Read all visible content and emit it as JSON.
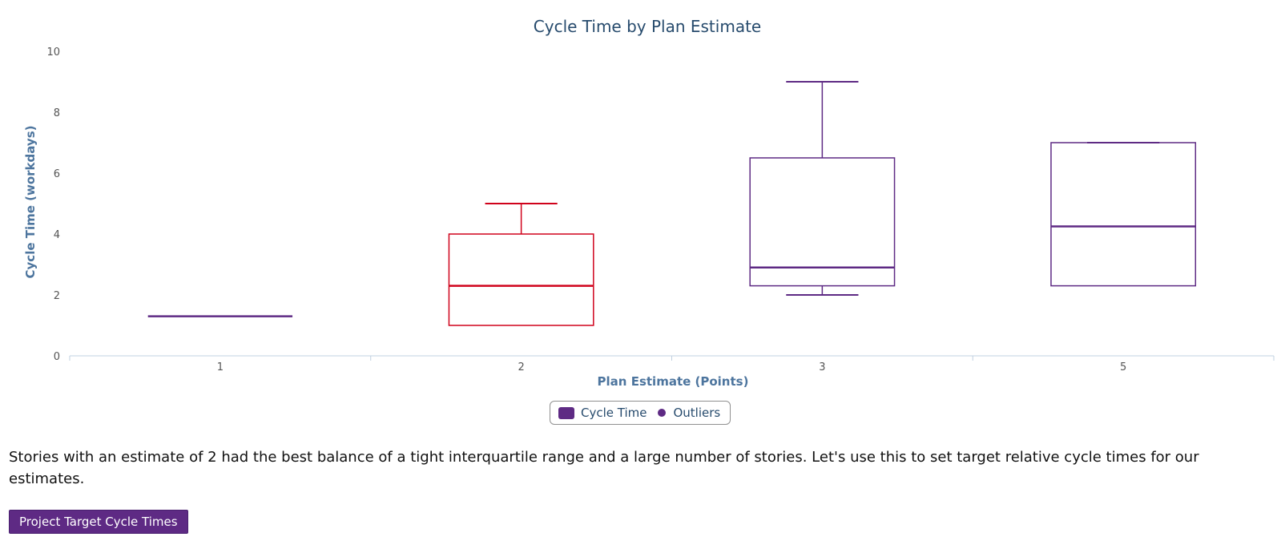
{
  "colors": {
    "primary": "#5e2a84",
    "highlight": "#d0021b",
    "axis_line": "#c0d0e0"
  },
  "chart_data": {
    "type": "boxplot",
    "title": "Cycle Time by Plan Estimate",
    "xlabel": "Plan Estimate (Points)",
    "ylabel": "Cycle Time (workdays)",
    "categories": [
      "1",
      "2",
      "3",
      "5"
    ],
    "ylim": [
      0,
      10
    ],
    "yticks": [
      "0",
      "2",
      "4",
      "6",
      "8",
      "10"
    ],
    "grid": false,
    "legend_position": "bottom-center",
    "series": [
      {
        "name": "Cycle Time",
        "boxes": [
          {
            "category": "1",
            "min": 1.3,
            "q1": 1.3,
            "median": 1.3,
            "q3": 1.3,
            "max": 1.3,
            "color": "#5e2a84"
          },
          {
            "category": "2",
            "min": 1.0,
            "q1": 1.0,
            "median": 2.3,
            "q3": 4.0,
            "max": 5.0,
            "color": "#d0021b"
          },
          {
            "category": "3",
            "min": 2.0,
            "q1": 2.3,
            "median": 2.9,
            "q3": 6.5,
            "max": 9.0,
            "color": "#5e2a84"
          },
          {
            "category": "5",
            "min": 2.3,
            "q1": 2.3,
            "median": 4.25,
            "q3": 7.0,
            "max": 7.0,
            "color": "#5e2a84"
          }
        ]
      },
      {
        "name": "Outliers",
        "points": []
      }
    ]
  },
  "legend": {
    "items": [
      {
        "label": "Cycle Time",
        "symbol": "square",
        "color": "#5e2a84"
      },
      {
        "label": "Outliers",
        "symbol": "circle",
        "color": "#5e2a84"
      }
    ]
  },
  "insight_text": "Stories with an estimate of 2 had the best balance of a tight interquartile range and a large number of stories. Let's use this to set target relative cycle times for our estimates.",
  "action_button": {
    "label": "Project Target Cycle Times"
  }
}
